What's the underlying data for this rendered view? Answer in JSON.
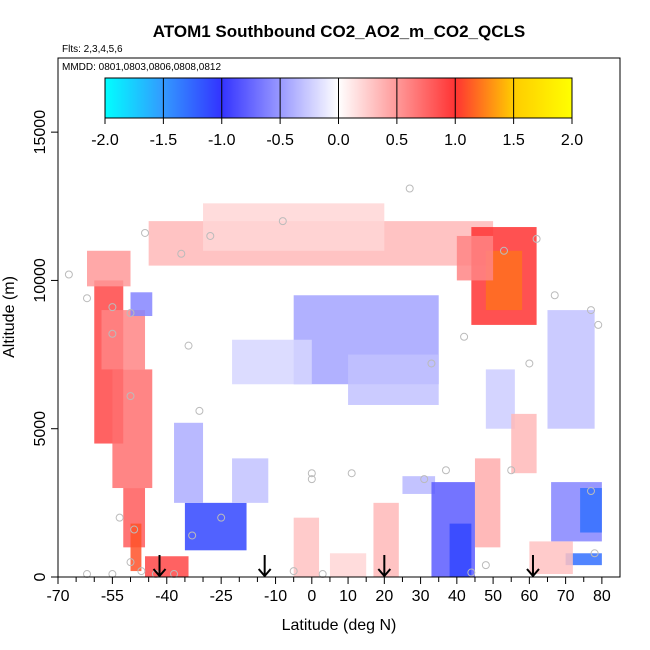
{
  "chart_data": {
    "type": "heatmap",
    "title": "ATOM1 Southbound CO2_AO2_m_CO2_QCLS",
    "flights_label": "Flts: 2,3,4,5,6",
    "dates_label": "MMDD: 0801,0803,0806,0808,0812",
    "xlabel": "Latitude (deg N)",
    "ylabel": "Altitude (m)",
    "xlim": [
      -70,
      85
    ],
    "ylim": [
      0,
      17500
    ],
    "x_ticks": [
      "-70",
      "-55",
      "-40",
      "-25",
      "-10",
      "0",
      "10",
      "20",
      "30",
      "40",
      "50",
      "60",
      "70",
      "80"
    ],
    "x_tick_values": [
      -70,
      -55,
      -40,
      -25,
      -10,
      0,
      10,
      20,
      30,
      40,
      50,
      60,
      70,
      80
    ],
    "y_ticks": [
      "0",
      "5000",
      "10000",
      "15000"
    ],
    "y_tick_values": [
      0,
      5000,
      10000,
      15000
    ],
    "colorbar": {
      "range": [
        -2.0,
        2.0
      ],
      "ticks": [
        "-2.0",
        "-1.5",
        "-1.0",
        "-0.5",
        "0.0",
        "0.5",
        "1.0",
        "1.5",
        "2.0"
      ],
      "tick_values": [
        -2.0,
        -1.5,
        -1.0,
        -0.5,
        0.0,
        0.5,
        1.0,
        1.5,
        2.0
      ],
      "colors": [
        "#00ffff",
        "#3399ff",
        "#3333ff",
        "#ffffff",
        "#ff3333",
        "#ffcc00",
        "#ffff00"
      ]
    },
    "field_regions": [
      {
        "lat": [
          -60,
          -52
        ],
        "alt": [
          4500,
          10000
        ],
        "value": 0.9
      },
      {
        "lat": [
          -62,
          -50
        ],
        "alt": [
          9800,
          11000
        ],
        "value": 0.5
      },
      {
        "lat": [
          -58,
          -46
        ],
        "alt": [
          7000,
          9000
        ],
        "value": 0.6
      },
      {
        "lat": [
          -55,
          -44
        ],
        "alt": [
          3000,
          7000
        ],
        "value": 0.7
      },
      {
        "lat": [
          -52,
          -46
        ],
        "alt": [
          1000,
          3000
        ],
        "value": 0.8
      },
      {
        "lat": [
          -50,
          -47
        ],
        "alt": [
          200,
          1800
        ],
        "value": 1.1
      },
      {
        "lat": [
          -46,
          -34
        ],
        "alt": [
          0,
          700
        ],
        "value": 0.9
      },
      {
        "lat": [
          -50,
          -44
        ],
        "alt": [
          8800,
          9600
        ],
        "value": -0.6
      },
      {
        "lat": [
          -35,
          -18
        ],
        "alt": [
          900,
          2500
        ],
        "value": -1.1
      },
      {
        "lat": [
          -38,
          -30
        ],
        "alt": [
          2500,
          5200
        ],
        "value": -0.4
      },
      {
        "lat": [
          -22,
          -12
        ],
        "alt": [
          2500,
          4000
        ],
        "value": -0.3
      },
      {
        "lat": [
          -45,
          50
        ],
        "alt": [
          10500,
          12000
        ],
        "value": 0.35
      },
      {
        "lat": [
          -30,
          20
        ],
        "alt": [
          11000,
          12600
        ],
        "value": 0.2
      },
      {
        "lat": [
          -5,
          35
        ],
        "alt": [
          6500,
          9500
        ],
        "value": -0.45
      },
      {
        "lat": [
          10,
          35
        ],
        "alt": [
          5800,
          7500
        ],
        "value": -0.3
      },
      {
        "lat": [
          -22,
          0
        ],
        "alt": [
          6500,
          8000
        ],
        "value": -0.2
      },
      {
        "lat": [
          44,
          62
        ],
        "alt": [
          8500,
          11800
        ],
        "value": 1.0
      },
      {
        "lat": [
          48,
          58
        ],
        "alt": [
          9000,
          11000
        ],
        "value": 1.2
      },
      {
        "lat": [
          40,
          50
        ],
        "alt": [
          10000,
          11500
        ],
        "value": 0.6
      },
      {
        "lat": [
          17,
          24
        ],
        "alt": [
          0,
          2500
        ],
        "value": 0.35
      },
      {
        "lat": [
          25,
          34
        ],
        "alt": [
          2800,
          3400
        ],
        "value": -0.35
      },
      {
        "lat": [
          33,
          45
        ],
        "alt": [
          0,
          3200
        ],
        "value": -0.8
      },
      {
        "lat": [
          38,
          44
        ],
        "alt": [
          0,
          1800
        ],
        "value": -1.1
      },
      {
        "lat": [
          45,
          52
        ],
        "alt": [
          1000,
          4000
        ],
        "value": 0.4
      },
      {
        "lat": [
          48,
          56
        ],
        "alt": [
          5000,
          7000
        ],
        "value": -0.25
      },
      {
        "lat": [
          55,
          62
        ],
        "alt": [
          3500,
          5500
        ],
        "value": 0.35
      },
      {
        "lat": [
          65,
          78
        ],
        "alt": [
          5000,
          9000
        ],
        "value": -0.3
      },
      {
        "lat": [
          66,
          80
        ],
        "alt": [
          1200,
          3200
        ],
        "value": -0.6
      },
      {
        "lat": [
          70,
          80
        ],
        "alt": [
          400,
          800
        ],
        "value": -1.3
      },
      {
        "lat": [
          74,
          80
        ],
        "alt": [
          1500,
          3000
        ],
        "value": -1.3
      },
      {
        "lat": [
          60,
          72
        ],
        "alt": [
          100,
          1200
        ],
        "value": 0.3
      },
      {
        "lat": [
          -5,
          2
        ],
        "alt": [
          0,
          2000
        ],
        "value": 0.3
      },
      {
        "lat": [
          5,
          15
        ],
        "alt": [
          0,
          800
        ],
        "value": 0.2
      }
    ],
    "sample_points": [
      [
        -67,
        10200
      ],
      [
        -62,
        9400
      ],
      [
        -55,
        9100
      ],
      [
        -55,
        8200
      ],
      [
        -50,
        8900
      ],
      [
        -46,
        11600
      ],
      [
        -50,
        6100
      ],
      [
        -36,
        10900
      ],
      [
        -34,
        7800
      ],
      [
        -31,
        5600
      ],
      [
        -28,
        11500
      ],
      [
        -25,
        2000
      ],
      [
        -33,
        1400
      ],
      [
        -8,
        12000
      ],
      [
        27,
        13100
      ],
      [
        0,
        3500
      ],
      [
        0,
        3300
      ],
      [
        11,
        3500
      ],
      [
        31,
        3300
      ],
      [
        37,
        3600
      ],
      [
        33,
        7200
      ],
      [
        42,
        8100
      ],
      [
        53,
        11000
      ],
      [
        62,
        11400
      ],
      [
        67,
        9500
      ],
      [
        77,
        9000
      ],
      [
        79,
        8500
      ],
      [
        77,
        2900
      ],
      [
        78,
        800
      ],
      [
        -53,
        2000
      ],
      [
        -49,
        1600
      ],
      [
        -62,
        100
      ],
      [
        -55,
        100
      ],
      [
        -50,
        500
      ],
      [
        -47,
        200
      ],
      [
        -43,
        100
      ],
      [
        -38,
        100
      ],
      [
        -5,
        200
      ],
      [
        3,
        100
      ],
      [
        44,
        150
      ],
      [
        48,
        400
      ],
      [
        55,
        3600
      ],
      [
        60,
        7200
      ]
    ],
    "arrow_latitudes": [
      -42,
      -13,
      20,
      61
    ]
  }
}
